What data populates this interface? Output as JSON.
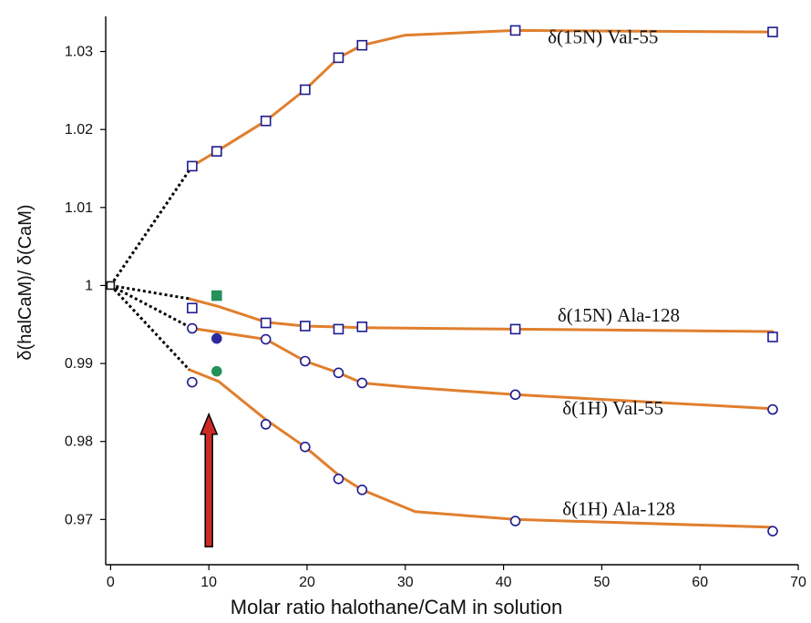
{
  "chart_data": {
    "type": "line",
    "title": "",
    "xlabel": "Molar ratio halothane/CaM in solution",
    "ylabel": "δ(halCaM)/ δ(CaM)",
    "xlim": [
      -0.5,
      70
    ],
    "ylim": [
      0.9642,
      1.0345
    ],
    "x_ticks": [
      0,
      10,
      20,
      30,
      40,
      50,
      60,
      70
    ],
    "y_ticks": [
      {
        "value": 0.97,
        "label": "0.97"
      },
      {
        "value": 0.98,
        "label": "0.98"
      },
      {
        "value": 0.99,
        "label": "0.99"
      },
      {
        "value": 1.0,
        "label": "1"
      },
      {
        "value": 1.01,
        "label": "1.01"
      },
      {
        "value": 1.02,
        "label": "1.02"
      },
      {
        "value": 1.03,
        "label": "1.03"
      }
    ],
    "grid": false,
    "line_color": "#E07F2E",
    "marker_color": "#1d1b8f",
    "origin_point": {
      "x": 0,
      "y": 1.0
    },
    "series": [
      {
        "name": "δ(15N)  Val-55",
        "marker": "square",
        "points": [
          {
            "x": 8.3,
            "y": 1.0153
          },
          {
            "x": 10.8,
            "y": 1.0172
          },
          {
            "x": 15.8,
            "y": 1.0211
          },
          {
            "x": 19.8,
            "y": 1.0251
          },
          {
            "x": 23.2,
            "y": 1.0292
          },
          {
            "x": 25.6,
            "y": 1.0308
          },
          {
            "x": 41.2,
            "y": 1.0327
          },
          {
            "x": 67.4,
            "y": 1.0325
          }
        ],
        "fit": [
          {
            "x": 8.3,
            "y": 1.0153
          },
          {
            "x": 10.8,
            "y": 1.0172
          },
          {
            "x": 15.8,
            "y": 1.0211
          },
          {
            "x": 19.8,
            "y": 1.0251
          },
          {
            "x": 23.2,
            "y": 1.0292
          },
          {
            "x": 25.6,
            "y": 1.0308
          },
          {
            "x": 30.0,
            "y": 1.0321
          },
          {
            "x": 41.2,
            "y": 1.0327
          },
          {
            "x": 67.4,
            "y": 1.0325
          }
        ],
        "label_at": {
          "x": 44.5,
          "y": 1.0319
        }
      },
      {
        "name": "δ(15N) Ala-128",
        "marker": "square",
        "points": [
          {
            "x": 8.3,
            "y": 0.9971
          },
          {
            "x": 15.8,
            "y": 0.9952
          },
          {
            "x": 19.8,
            "y": 0.9948
          },
          {
            "x": 23.2,
            "y": 0.9944
          },
          {
            "x": 25.6,
            "y": 0.9947
          },
          {
            "x": 41.2,
            "y": 0.9944
          },
          {
            "x": 67.4,
            "y": 0.9934
          }
        ],
        "fit": [
          {
            "x": 8.0,
            "y": 0.9983
          },
          {
            "x": 11.0,
            "y": 0.9973
          },
          {
            "x": 15.8,
            "y": 0.9953
          },
          {
            "x": 19.8,
            "y": 0.9948
          },
          {
            "x": 25.6,
            "y": 0.9946
          },
          {
            "x": 41.2,
            "y": 0.9944
          },
          {
            "x": 67.4,
            "y": 0.9941
          }
        ],
        "label_at": {
          "x": 45.5,
          "y": 0.9962
        },
        "extra_point": {
          "x": 10.8,
          "y": 0.9987,
          "shape": "square",
          "color": "#22915a"
        }
      },
      {
        "name": "δ(1H)  Val-55",
        "marker": "circle",
        "points": [
          {
            "x": 8.3,
            "y": 0.9945
          },
          {
            "x": 15.8,
            "y": 0.9931
          },
          {
            "x": 19.8,
            "y": 0.9903
          },
          {
            "x": 23.2,
            "y": 0.9888
          },
          {
            "x": 25.6,
            "y": 0.9875
          },
          {
            "x": 41.2,
            "y": 0.986
          },
          {
            "x": 67.4,
            "y": 0.9841
          }
        ],
        "fit": [
          {
            "x": 8.3,
            "y": 0.9945
          },
          {
            "x": 15.8,
            "y": 0.9931
          },
          {
            "x": 19.8,
            "y": 0.9903
          },
          {
            "x": 23.2,
            "y": 0.9888
          },
          {
            "x": 25.6,
            "y": 0.9875
          },
          {
            "x": 30.0,
            "y": 0.987
          },
          {
            "x": 41.2,
            "y": 0.986
          },
          {
            "x": 67.4,
            "y": 0.9842
          }
        ],
        "label_at": {
          "x": 46.0,
          "y": 0.9843
        },
        "extra_point": {
          "x": 10.8,
          "y": 0.9932,
          "shape": "circle",
          "color": "#2c2a9e"
        }
      },
      {
        "name": "δ(1H) Ala-128",
        "marker": "circle",
        "points": [
          {
            "x": 8.3,
            "y": 0.9876
          },
          {
            "x": 15.8,
            "y": 0.9822
          },
          {
            "x": 19.8,
            "y": 0.9793
          },
          {
            "x": 23.2,
            "y": 0.9752
          },
          {
            "x": 25.6,
            "y": 0.9738
          },
          {
            "x": 41.2,
            "y": 0.9698
          },
          {
            "x": 67.4,
            "y": 0.9685
          }
        ],
        "fit": [
          {
            "x": 8.0,
            "y": 0.9892
          },
          {
            "x": 11.0,
            "y": 0.9877
          },
          {
            "x": 15.8,
            "y": 0.9828
          },
          {
            "x": 19.8,
            "y": 0.9793
          },
          {
            "x": 23.2,
            "y": 0.9757
          },
          {
            "x": 25.6,
            "y": 0.9738
          },
          {
            "x": 31.0,
            "y": 0.971
          },
          {
            "x": 41.2,
            "y": 0.97
          },
          {
            "x": 67.4,
            "y": 0.969
          }
        ],
        "label_at": {
          "x": 46.0,
          "y": 0.9714
        },
        "extra_point": {
          "x": 10.8,
          "y": 0.989,
          "shape": "circle",
          "color": "#22915a"
        }
      }
    ],
    "annotation": {
      "type": "arrow",
      "color": "#cc2a24",
      "direction": "up",
      "x": 10.0,
      "y_from": 0.9665,
      "y_to": 0.9835
    }
  }
}
